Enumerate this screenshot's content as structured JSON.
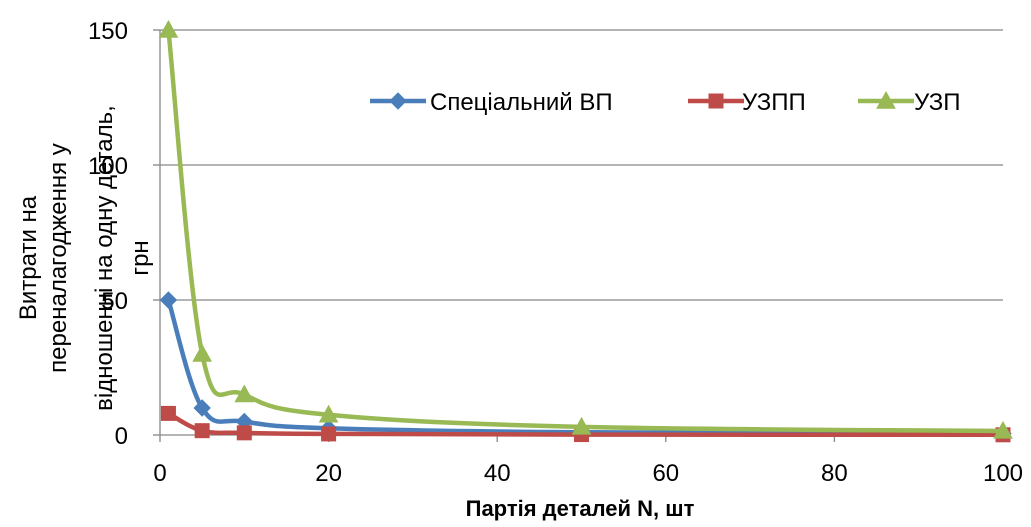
{
  "chart_data": {
    "type": "line",
    "xlabel": "Партія деталей N, шт",
    "ylabel_lines": [
      "Витрати на",
      "переналагодження у",
      "відношенні на одну деталь,",
      "грн"
    ],
    "xlim": [
      0,
      100
    ],
    "ylim": [
      0,
      150
    ],
    "xticks": [
      "0",
      "20",
      "40",
      "60",
      "80",
      "100"
    ],
    "yticks": [
      "0",
      "50",
      "100",
      "150"
    ],
    "grid": "horizontal",
    "legend": "top-right",
    "x": [
      1,
      5,
      10,
      20,
      50,
      100
    ],
    "series": [
      {
        "name": "Спеціальний ВП",
        "color": "#4a7ebb",
        "marker": "diamond",
        "values": [
          50,
          10,
          5,
          2.5,
          1,
          0.5
        ]
      },
      {
        "name": "УЗПП",
        "color": "#be4b48",
        "marker": "square",
        "values": [
          8,
          1.6,
          0.8,
          0.4,
          0.16,
          0.08
        ]
      },
      {
        "name": "УЗП",
        "color": "#98b954",
        "marker": "triangle",
        "values": [
          150,
          30,
          15,
          7.5,
          3,
          1.5
        ]
      }
    ]
  }
}
